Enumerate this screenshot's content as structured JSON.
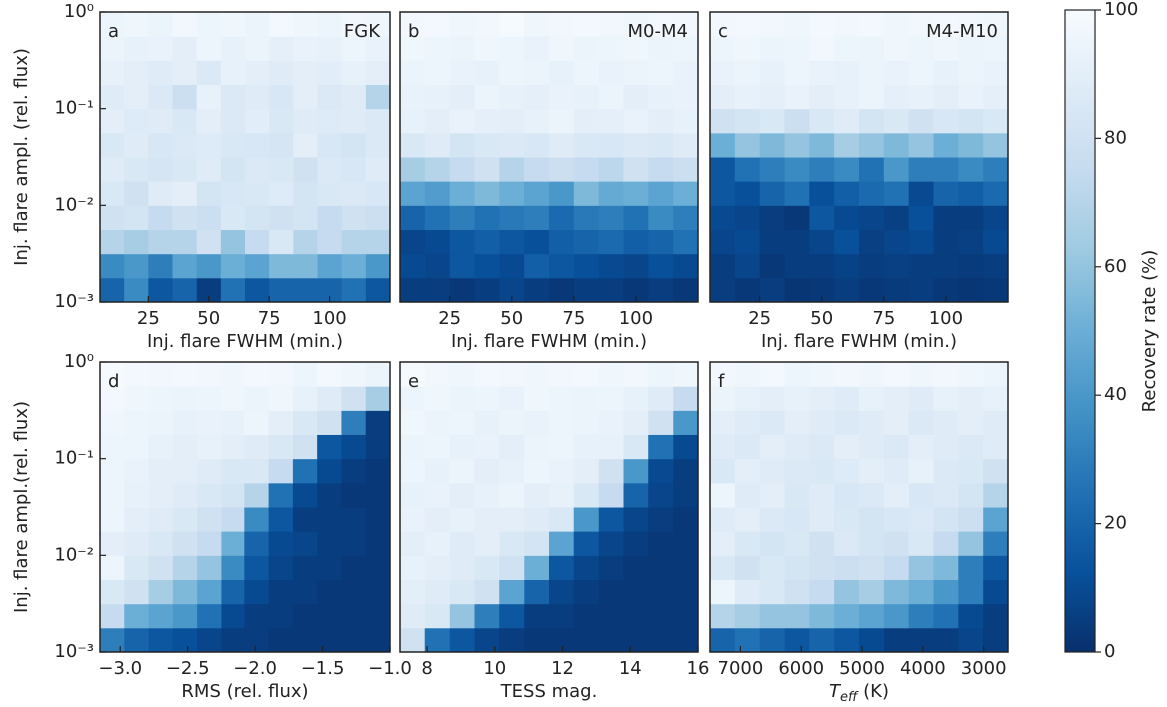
{
  "chart_data": [
    {
      "type": "heatmap",
      "label": "a",
      "subtitle": "FGK",
      "xlabel": "Inj. flare FWHM (min.)",
      "ylabel": "Inj. flare ampl. (rel. flux)",
      "xlim": [
        5,
        125
      ],
      "xticks": [
        25,
        50,
        75,
        100
      ],
      "ylim": [
        0.001,
        1
      ],
      "log_y": true,
      "yticks": [
        {
          "value": 0.001,
          "label": "10⁻³"
        },
        {
          "value": 0.01,
          "label": "10⁻²"
        },
        {
          "value": 0.1,
          "label": "10⁻¹"
        },
        {
          "value": 1,
          "label": "10⁰"
        }
      ],
      "xbins": [
        5,
        15,
        25,
        35,
        45,
        55,
        65,
        75,
        85,
        95,
        105,
        115,
        125
      ],
      "ybins": [
        0.001,
        0.00178,
        0.00316,
        0.00562,
        0.01,
        0.0178,
        0.0316,
        0.0562,
        0.1,
        0.178,
        0.316,
        0.562,
        1
      ],
      "z": [
        [
          20,
          35,
          15,
          20,
          5,
          25,
          15,
          20,
          20,
          20,
          25,
          15
        ],
        [
          35,
          40,
          30,
          45,
          40,
          50,
          45,
          55,
          55,
          45,
          50,
          40
        ],
        [
          70,
          65,
          70,
          70,
          80,
          60,
          75,
          85,
          70,
          75,
          70,
          70
        ],
        [
          80,
          82,
          75,
          80,
          78,
          85,
          82,
          80,
          82,
          75,
          80,
          78
        ],
        [
          85,
          80,
          88,
          90,
          82,
          84,
          85,
          87,
          82,
          85,
          86,
          84
        ],
        [
          88,
          85,
          83,
          85,
          88,
          82,
          86,
          85,
          80,
          86,
          84,
          88
        ],
        [
          85,
          88,
          84,
          86,
          87,
          85,
          84,
          83,
          90,
          84,
          82,
          86
        ],
        [
          90,
          87,
          88,
          85,
          90,
          86,
          89,
          85,
          88,
          87,
          88,
          86
        ],
        [
          88,
          90,
          86,
          78,
          92,
          86,
          88,
          84,
          90,
          86,
          88,
          70
        ],
        [
          92,
          90,
          88,
          90,
          86,
          92,
          90,
          88,
          90,
          89,
          92,
          90
        ],
        [
          94,
          92,
          93,
          90,
          95,
          92,
          94,
          91,
          93,
          92,
          95,
          93
        ],
        [
          95,
          96,
          94,
          97,
          95,
          96,
          94,
          98,
          96,
          95,
          97,
          96
        ]
      ]
    },
    {
      "type": "heatmap",
      "label": "b",
      "subtitle": "M0-M4",
      "xlabel": "Inj. flare FWHM (min.)",
      "xlim": [
        5,
        125
      ],
      "xticks": [
        25,
        50,
        75,
        100
      ],
      "ylim": [
        0.001,
        1
      ],
      "log_y": true,
      "xbins": [
        5,
        15,
        25,
        35,
        45,
        55,
        65,
        75,
        85,
        95,
        105,
        115,
        125
      ],
      "ybins": [
        0.001,
        0.00178,
        0.00316,
        0.00562,
        0.01,
        0.0178,
        0.0316,
        0.0562,
        0.1,
        0.178,
        0.316,
        0.562,
        1
      ],
      "z": [
        [
          5,
          5,
          3,
          5,
          8,
          5,
          3,
          5,
          5,
          3,
          5,
          3
        ],
        [
          10,
          8,
          15,
          12,
          10,
          18,
          15,
          12,
          10,
          8,
          12,
          10
        ],
        [
          8,
          10,
          15,
          18,
          15,
          12,
          18,
          20,
          22,
          18,
          20,
          25
        ],
        [
          20,
          25,
          30,
          25,
          28,
          30,
          22,
          28,
          30,
          25,
          35,
          30
        ],
        [
          45,
          42,
          50,
          55,
          50,
          45,
          40,
          55,
          48,
          50,
          45,
          50
        ],
        [
          65,
          70,
          75,
          80,
          70,
          75,
          78,
          75,
          72,
          80,
          75,
          78
        ],
        [
          85,
          88,
          82,
          85,
          86,
          84,
          88,
          85,
          84,
          86,
          85,
          88
        ],
        [
          92,
          90,
          93,
          91,
          90,
          92,
          94,
          90,
          91,
          93,
          90,
          92
        ],
        [
          93,
          92,
          90,
          94,
          92,
          91,
          93,
          92,
          94,
          90,
          92,
          93
        ],
        [
          94,
          95,
          93,
          92,
          95,
          94,
          92,
          95,
          93,
          94,
          95,
          93
        ],
        [
          96,
          95,
          94,
          96,
          95,
          93,
          96,
          94,
          95,
          96,
          94,
          95
        ],
        [
          97,
          98,
          96,
          97,
          99,
          96,
          97,
          98,
          97,
          96,
          98,
          97
        ]
      ]
    },
    {
      "type": "heatmap",
      "label": "c",
      "subtitle": "M4-M10",
      "xlabel": "Inj. flare FWHM (min.)",
      "xlim": [
        5,
        125
      ],
      "xticks": [
        25,
        50,
        75,
        100
      ],
      "ylim": [
        0.001,
        1
      ],
      "log_y": true,
      "xbins": [
        5,
        15,
        25,
        35,
        45,
        55,
        65,
        75,
        85,
        95,
        105,
        115,
        125
      ],
      "ybins": [
        0.001,
        0.00178,
        0.00316,
        0.00562,
        0.01,
        0.0178,
        0.0316,
        0.0562,
        0.1,
        0.178,
        0.316,
        0.562,
        1
      ],
      "z": [
        [
          5,
          3,
          5,
          2,
          3,
          5,
          3,
          4,
          5,
          3,
          2,
          3
        ],
        [
          5,
          8,
          3,
          5,
          5,
          7,
          5,
          6,
          5,
          5,
          4,
          5
        ],
        [
          8,
          10,
          5,
          5,
          8,
          12,
          6,
          8,
          10,
          5,
          6,
          10
        ],
        [
          10,
          8,
          5,
          3,
          15,
          10,
          8,
          6,
          12,
          5,
          5,
          8
        ],
        [
          15,
          12,
          20,
          25,
          12,
          18,
          22,
          25,
          10,
          20,
          18,
          22
        ],
        [
          15,
          25,
          30,
          35,
          30,
          35,
          25,
          40,
          30,
          30,
          35,
          30
        ],
        [
          50,
          60,
          55,
          60,
          55,
          65,
          60,
          55,
          60,
          50,
          55,
          60
        ],
        [
          80,
          82,
          85,
          78,
          85,
          88,
          82,
          85,
          80,
          84,
          82,
          85
        ],
        [
          90,
          92,
          91,
          93,
          90,
          92,
          94,
          91,
          92,
          90,
          93,
          91
        ],
        [
          93,
          94,
          92,
          95,
          93,
          92,
          94,
          93,
          95,
          92,
          94,
          93
        ],
        [
          95,
          96,
          94,
          95,
          97,
          95,
          94,
          96,
          95,
          96,
          94,
          95
        ],
        [
          97,
          98,
          97,
          96,
          98,
          97,
          98,
          96,
          97,
          98,
          97,
          96
        ]
      ]
    },
    {
      "type": "heatmap",
      "label": "d",
      "xlabel": "RMS (rel. flux)",
      "ylabel": "Inj. flare ampl.(rel. flux)",
      "xlim": [
        -3.15,
        -1.0
      ],
      "xticks": [
        {
          "value": -3,
          "label": "−3.0"
        },
        {
          "value": -2.5,
          "label": "−2.5"
        },
        {
          "value": -2,
          "label": "−2.0"
        },
        {
          "value": -1.5,
          "label": "−1.5"
        },
        {
          "value": -1,
          "label": "−1.0"
        }
      ],
      "ylim": [
        0.001,
        1
      ],
      "log_y": true,
      "yticks": [
        {
          "value": 0.001,
          "label": "10⁻³"
        },
        {
          "value": 0.01,
          "label": "10⁻²"
        },
        {
          "value": 0.1,
          "label": "10⁻¹"
        },
        {
          "value": 1,
          "label": "10⁰"
        }
      ],
      "xbins": [
        -3.15,
        -2.97,
        -2.79,
        -2.61,
        -2.43,
        -2.25,
        -2.08,
        -1.9,
        -1.72,
        -1.54,
        -1.36,
        -1.18,
        -1.0
      ],
      "ybins": [
        0.001,
        0.00178,
        0.00316,
        0.00562,
        0.01,
        0.0178,
        0.0316,
        0.0562,
        0.1,
        0.178,
        0.316,
        0.562,
        1
      ],
      "z": [
        [
          30,
          20,
          15,
          12,
          8,
          5,
          5,
          3,
          3,
          3,
          3,
          3
        ],
        [
          75,
          50,
          45,
          40,
          25,
          10,
          5,
          5,
          3,
          3,
          3,
          3
        ],
        [
          85,
          80,
          65,
          55,
          45,
          20,
          10,
          5,
          5,
          3,
          3,
          3
        ],
        [
          95,
          85,
          80,
          70,
          60,
          35,
          15,
          8,
          5,
          5,
          3,
          3
        ],
        [
          90,
          88,
          85,
          80,
          75,
          50,
          20,
          10,
          8,
          5,
          5,
          3
        ],
        [
          95,
          90,
          88,
          85,
          80,
          75,
          35,
          15,
          5,
          5,
          5,
          3
        ],
        [
          95,
          92,
          90,
          88,
          85,
          82,
          70,
          25,
          10,
          5,
          3,
          3
        ],
        [
          95,
          93,
          90,
          90,
          88,
          85,
          85,
          75,
          25,
          10,
          5,
          3
        ],
        [
          95,
          95,
          92,
          90,
          92,
          90,
          88,
          85,
          80,
          15,
          10,
          5
        ],
        [
          96,
          95,
          94,
          92,
          93,
          92,
          95,
          90,
          85,
          80,
          30,
          5
        ],
        [
          98,
          96,
          95,
          94,
          95,
          96,
          94,
          96,
          92,
          88,
          80,
          65
        ],
        [
          99,
          98,
          97,
          98,
          97,
          96,
          98,
          97,
          95,
          98,
          96,
          94
        ]
      ]
    },
    {
      "type": "heatmap",
      "label": "e",
      "xlabel": "TESS mag.",
      "xlim": [
        7.2,
        16
      ],
      "xticks": [
        8,
        10,
        12,
        14,
        16
      ],
      "ylim": [
        0.001,
        1
      ],
      "log_y": true,
      "xbins": [
        7.2,
        7.93,
        8.67,
        9.4,
        10.13,
        10.87,
        11.6,
        12.33,
        13.07,
        13.8,
        14.53,
        15.27,
        16
      ],
      "ybins": [
        0.001,
        0.00178,
        0.00316,
        0.00562,
        0.01,
        0.0178,
        0.0316,
        0.0562,
        0.1,
        0.178,
        0.316,
        0.562,
        1
      ],
      "z": [
        [
          80,
          25,
          15,
          8,
          5,
          3,
          3,
          3,
          3,
          3,
          3,
          3
        ],
        [
          88,
          85,
          60,
          30,
          15,
          5,
          5,
          3,
          3,
          3,
          3,
          3
        ],
        [
          90,
          88,
          85,
          80,
          45,
          20,
          8,
          5,
          3,
          3,
          3,
          3
        ],
        [
          92,
          90,
          88,
          85,
          80,
          50,
          15,
          8,
          5,
          3,
          3,
          3
        ],
        [
          90,
          92,
          88,
          90,
          85,
          82,
          45,
          15,
          8,
          5,
          3,
          3
        ],
        [
          93,
          90,
          92,
          90,
          90,
          88,
          85,
          40,
          15,
          8,
          5,
          3
        ],
        [
          92,
          93,
          90,
          92,
          94,
          90,
          92,
          85,
          75,
          20,
          8,
          5
        ],
        [
          95,
          92,
          94,
          90,
          92,
          95,
          93,
          90,
          80,
          40,
          10,
          5
        ],
        [
          94,
          95,
          92,
          93,
          90,
          94,
          95,
          92,
          92,
          85,
          25,
          10
        ],
        [
          96,
          94,
          95,
          92,
          94,
          93,
          95,
          94,
          93,
          90,
          80,
          40
        ],
        [
          95,
          96,
          94,
          95,
          93,
          96,
          95,
          94,
          95,
          92,
          88,
          75
        ],
        [
          99,
          97,
          96,
          98,
          97,
          96,
          97,
          98,
          96,
          97,
          95,
          96
        ]
      ]
    },
    {
      "type": "heatmap",
      "label": "f",
      "xlabel": {
        "base": "T",
        "sub": "eff",
        "rest": " (K)"
      },
      "xlim": [
        7500,
        2600
      ],
      "xticks": [
        7000,
        6000,
        5000,
        4000,
        3000
      ],
      "ylim": [
        0.001,
        1
      ],
      "log_y": true,
      "xbins": [
        7500,
        7092,
        6683,
        6275,
        5867,
        5458,
        5050,
        4642,
        4233,
        3825,
        3417,
        3008,
        2600
      ],
      "ybins": [
        0.001,
        0.00178,
        0.00316,
        0.00562,
        0.01,
        0.0178,
        0.0316,
        0.0562,
        0.1,
        0.178,
        0.316,
        0.562,
        1
      ],
      "z": [
        [
          20,
          25,
          20,
          15,
          20,
          15,
          10,
          5,
          5,
          5,
          8,
          5
        ],
        [
          70,
          65,
          60,
          60,
          55,
          50,
          45,
          40,
          30,
          25,
          10,
          5
        ],
        [
          95,
          88,
          85,
          80,
          75,
          60,
          65,
          55,
          50,
          40,
          30,
          10
        ],
        [
          85,
          80,
          85,
          82,
          80,
          78,
          80,
          75,
          60,
          55,
          30,
          15
        ],
        [
          90,
          85,
          82,
          85,
          80,
          86,
          82,
          80,
          85,
          75,
          60,
          30
        ],
        [
          88,
          90,
          86,
          84,
          88,
          85,
          82,
          84,
          86,
          82,
          78,
          45
        ],
        [
          95,
          88,
          90,
          85,
          88,
          84,
          86,
          90,
          84,
          86,
          82,
          70
        ],
        [
          85,
          90,
          88,
          86,
          85,
          87,
          90,
          88,
          92,
          86,
          85,
          80
        ],
        [
          88,
          86,
          90,
          88,
          86,
          90,
          88,
          86,
          90,
          88,
          86,
          88
        ],
        [
          90,
          88,
          86,
          90,
          88,
          86,
          88,
          90,
          86,
          88,
          90,
          88
        ],
        [
          94,
          92,
          90,
          92,
          90,
          88,
          92,
          90,
          88,
          92,
          90,
          92
        ],
        [
          97,
          96,
          98,
          95,
          96,
          97,
          96,
          98,
          96,
          97,
          96,
          95
        ]
      ]
    }
  ],
  "colorbar": {
    "label": "Recovery rate (%)",
    "lim": [
      0,
      100
    ],
    "ticks": [
      0,
      20,
      40,
      60,
      80,
      100
    ],
    "colormap": [
      "#08306b",
      "#08519c",
      "#2171b5",
      "#4292c6",
      "#6baed6",
      "#9ecae1",
      "#c6dbef",
      "#deebf7",
      "#f7fbff"
    ]
  }
}
